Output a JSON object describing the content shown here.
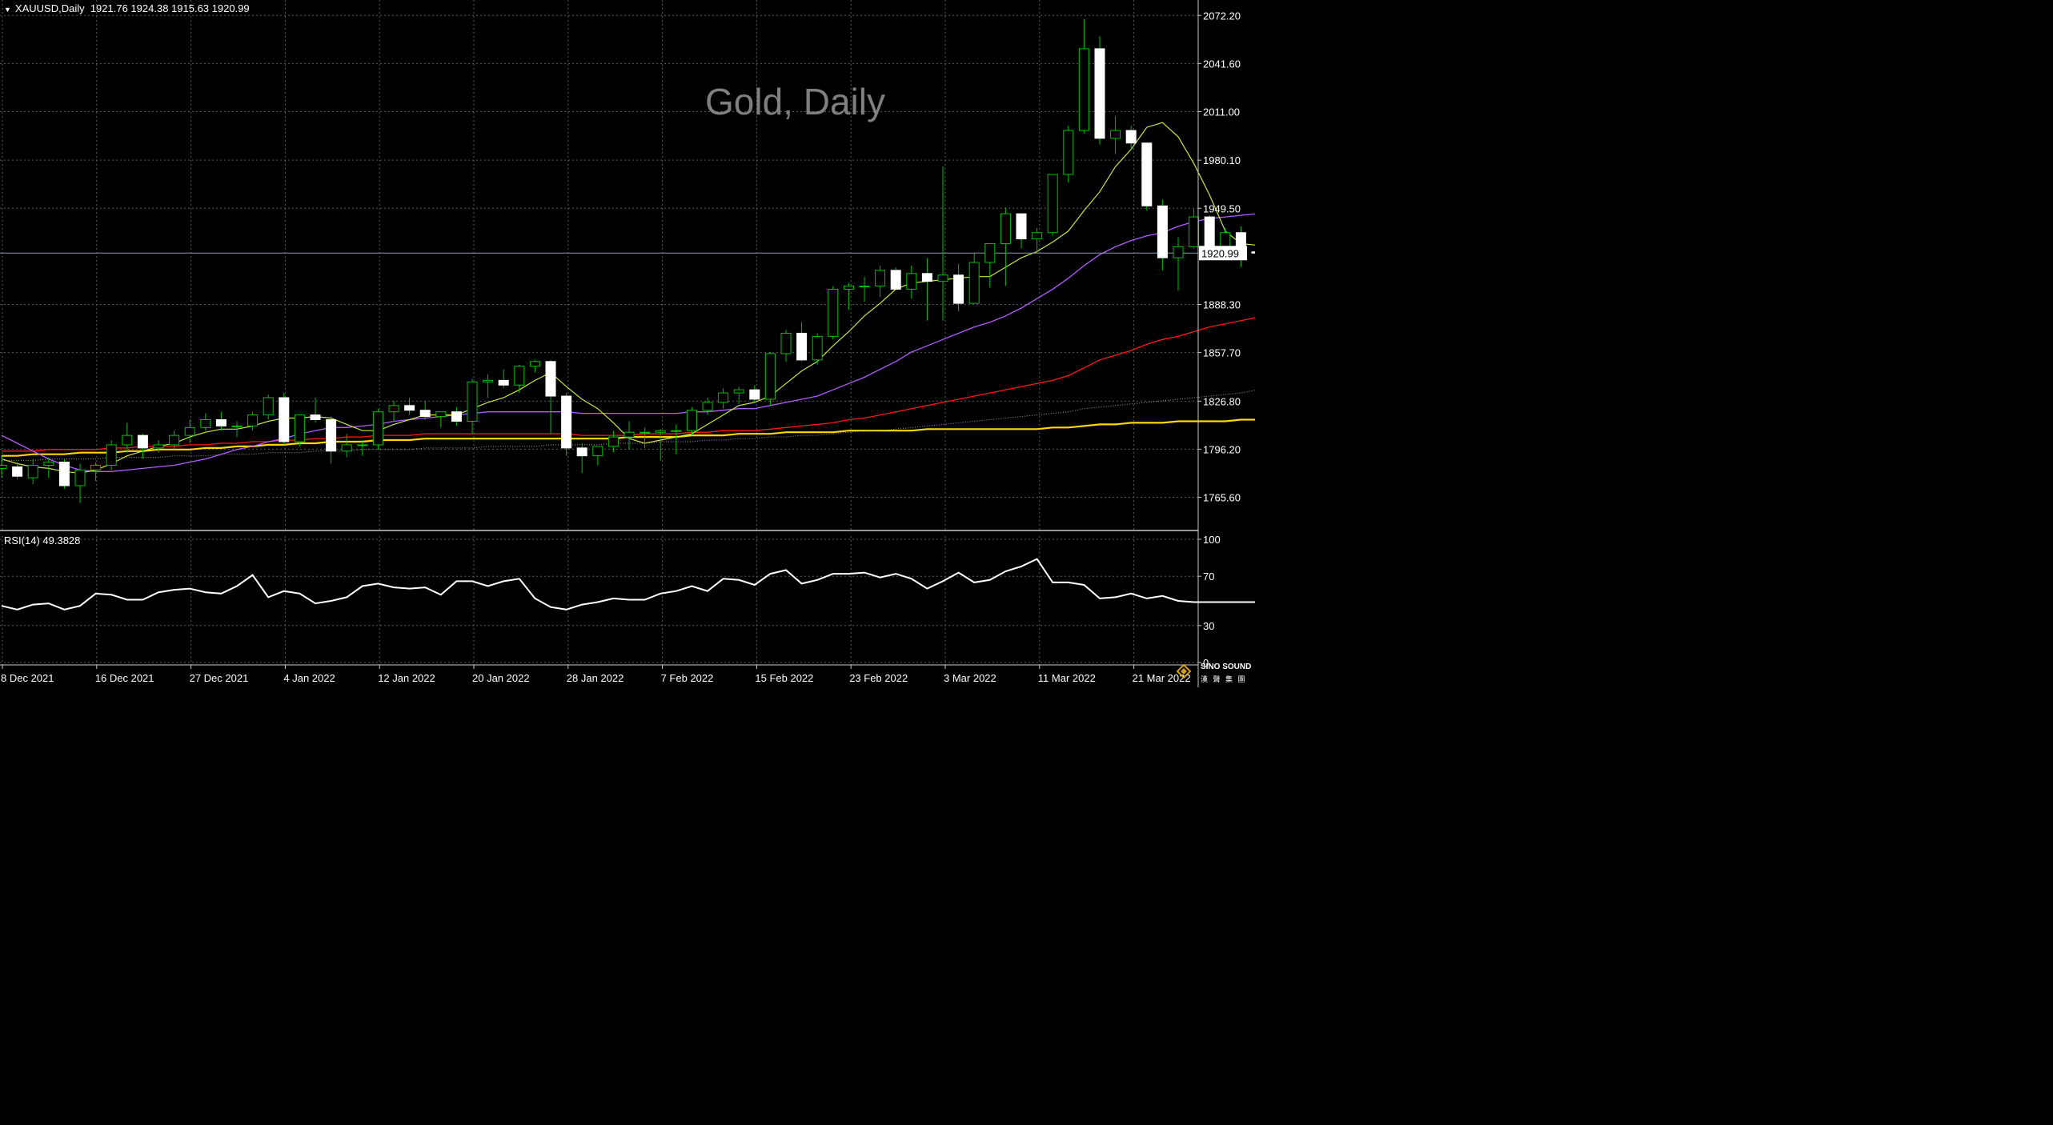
{
  "header": {
    "symbol_line": "XAUUSD,Daily  1921.76 1924.38 1915.63 1920.99"
  },
  "watermark": "Gold, Daily",
  "logo": {
    "line1": "SINO SOUND",
    "line2": "漢 聲 集 團"
  },
  "colors": {
    "background": "#000000",
    "grid": "#5a5a5a",
    "bull_candle": "#000000",
    "bear_candle": "#ffffff",
    "wick": "#00c000",
    "ma5": "#c8e642",
    "ma20": "#b35cff",
    "ma60": "#ff1a1a",
    "ma120": "#a0a0a0",
    "ma240": "#ffd700",
    "rsi": "#ffffff"
  },
  "chart_data": [
    {
      "type": "candlestick",
      "title": "XAUUSD,Daily",
      "last_price": "1920.99",
      "y_ticks": [
        "2072.20",
        "2041.60",
        "2011.00",
        "1980.10",
        "1949.50",
        "1920.99",
        "1888.30",
        "1857.70",
        "1826.80",
        "1796.20",
        "1765.60"
      ],
      "ylim": [
        1745,
        2082
      ],
      "x_labels": [
        "8 Dec 2021",
        "16 Dec 2021",
        "27 Dec 2021",
        "4 Jan 2022",
        "12 Jan 2022",
        "20 Jan 2022",
        "28 Jan 2022",
        "7 Feb 2022",
        "15 Feb 2022",
        "23 Feb 2022",
        "3 Mar 2022",
        "11 Mar 2022",
        "21 Mar 2022"
      ],
      "candles": [
        {
          "o": 1784,
          "h": 1792,
          "l": 1778,
          "c": 1786
        },
        {
          "o": 1785,
          "h": 1788,
          "l": 1777,
          "c": 1779
        },
        {
          "o": 1778,
          "h": 1790,
          "l": 1774,
          "c": 1786
        },
        {
          "o": 1786,
          "h": 1791,
          "l": 1778,
          "c": 1788
        },
        {
          "o": 1788,
          "h": 1790,
          "l": 1771,
          "c": 1773
        },
        {
          "o": 1773,
          "h": 1787,
          "l": 1762,
          "c": 1783
        },
        {
          "o": 1783,
          "h": 1788,
          "l": 1776,
          "c": 1786
        },
        {
          "o": 1786,
          "h": 1802,
          "l": 1783,
          "c": 1799
        },
        {
          "o": 1799,
          "h": 1813,
          "l": 1794,
          "c": 1805
        },
        {
          "o": 1805,
          "h": 1806,
          "l": 1790,
          "c": 1797
        },
        {
          "o": 1797,
          "h": 1802,
          "l": 1794,
          "c": 1799
        },
        {
          "o": 1799,
          "h": 1808,
          "l": 1796,
          "c": 1805
        },
        {
          "o": 1805,
          "h": 1815,
          "l": 1800,
          "c": 1810
        },
        {
          "o": 1810,
          "h": 1819,
          "l": 1808,
          "c": 1815
        },
        {
          "o": 1815,
          "h": 1820,
          "l": 1808,
          "c": 1811
        },
        {
          "o": 1811,
          "h": 1814,
          "l": 1804,
          "c": 1811
        },
        {
          "o": 1811,
          "h": 1820,
          "l": 1808,
          "c": 1818
        },
        {
          "o": 1818,
          "h": 1831,
          "l": 1815,
          "c": 1829
        },
        {
          "o": 1829,
          "h": 1832,
          "l": 1799,
          "c": 1801
        },
        {
          "o": 1801,
          "h": 1818,
          "l": 1798,
          "c": 1818
        },
        {
          "o": 1818,
          "h": 1829,
          "l": 1813,
          "c": 1815
        },
        {
          "o": 1815,
          "h": 1817,
          "l": 1787,
          "c": 1795
        },
        {
          "o": 1795,
          "h": 1806,
          "l": 1791,
          "c": 1799
        },
        {
          "o": 1799,
          "h": 1802,
          "l": 1792,
          "c": 1799
        },
        {
          "o": 1799,
          "h": 1822,
          "l": 1796,
          "c": 1820
        },
        {
          "o": 1820,
          "h": 1827,
          "l": 1814,
          "c": 1824
        },
        {
          "o": 1824,
          "h": 1829,
          "l": 1818,
          "c": 1821
        },
        {
          "o": 1821,
          "h": 1827,
          "l": 1815,
          "c": 1817
        },
        {
          "o": 1817,
          "h": 1820,
          "l": 1810,
          "c": 1820
        },
        {
          "o": 1820,
          "h": 1823,
          "l": 1811,
          "c": 1814
        },
        {
          "o": 1814,
          "h": 1841,
          "l": 1806,
          "c": 1839
        },
        {
          "o": 1839,
          "h": 1844,
          "l": 1829,
          "c": 1840
        },
        {
          "o": 1840,
          "h": 1847,
          "l": 1835,
          "c": 1837
        },
        {
          "o": 1837,
          "h": 1850,
          "l": 1832,
          "c": 1849
        },
        {
          "o": 1849,
          "h": 1853,
          "l": 1845,
          "c": 1852
        },
        {
          "o": 1852,
          "h": 1853,
          "l": 1806,
          "c": 1830
        },
        {
          "o": 1830,
          "h": 1832,
          "l": 1792,
          "c": 1797
        },
        {
          "o": 1797,
          "h": 1800,
          "l": 1781,
          "c": 1792
        },
        {
          "o": 1792,
          "h": 1798,
          "l": 1786,
          "c": 1798
        },
        {
          "o": 1798,
          "h": 1808,
          "l": 1794,
          "c": 1804
        },
        {
          "o": 1804,
          "h": 1814,
          "l": 1796,
          "c": 1807
        },
        {
          "o": 1807,
          "h": 1810,
          "l": 1797,
          "c": 1807
        },
        {
          "o": 1807,
          "h": 1809,
          "l": 1789,
          "c": 1808
        },
        {
          "o": 1808,
          "h": 1812,
          "l": 1793,
          "c": 1808
        },
        {
          "o": 1808,
          "h": 1823,
          "l": 1805,
          "c": 1821
        },
        {
          "o": 1821,
          "h": 1829,
          "l": 1818,
          "c": 1826
        },
        {
          "o": 1826,
          "h": 1835,
          "l": 1822,
          "c": 1832
        },
        {
          "o": 1832,
          "h": 1836,
          "l": 1825,
          "c": 1834
        },
        {
          "o": 1834,
          "h": 1837,
          "l": 1826,
          "c": 1828
        },
        {
          "o": 1828,
          "h": 1858,
          "l": 1824,
          "c": 1857
        },
        {
          "o": 1857,
          "h": 1872,
          "l": 1852,
          "c": 1870
        },
        {
          "o": 1870,
          "h": 1877,
          "l": 1852,
          "c": 1853
        },
        {
          "o": 1853,
          "h": 1870,
          "l": 1850,
          "c": 1868
        },
        {
          "o": 1868,
          "h": 1900,
          "l": 1866,
          "c": 1898
        },
        {
          "o": 1898,
          "h": 1902,
          "l": 1885,
          "c": 1900
        },
        {
          "o": 1900,
          "h": 1906,
          "l": 1890,
          "c": 1900
        },
        {
          "o": 1900,
          "h": 1913,
          "l": 1893,
          "c": 1910
        },
        {
          "o": 1910,
          "h": 1912,
          "l": 1898,
          "c": 1898
        },
        {
          "o": 1898,
          "h": 1913,
          "l": 1892,
          "c": 1908
        },
        {
          "o": 1908,
          "h": 1918,
          "l": 1878,
          "c": 1903
        },
        {
          "o": 1903,
          "h": 1976,
          "l": 1878,
          "c": 1907
        },
        {
          "o": 1907,
          "h": 1914,
          "l": 1884,
          "c": 1889
        },
        {
          "o": 1889,
          "h": 1921,
          "l": 1892,
          "c": 1915
        },
        {
          "o": 1915,
          "h": 1927,
          "l": 1899,
          "c": 1927
        },
        {
          "o": 1927,
          "h": 1950,
          "l": 1900,
          "c": 1946
        },
        {
          "o": 1946,
          "h": 1946,
          "l": 1924,
          "c": 1930
        },
        {
          "o": 1930,
          "h": 1937,
          "l": 1921,
          "c": 1934
        },
        {
          "o": 1934,
          "h": 1971,
          "l": 1932,
          "c": 1971
        },
        {
          "o": 1971,
          "h": 2002,
          "l": 1966,
          "c": 1999
        },
        {
          "o": 1999,
          "h": 2070,
          "l": 1997,
          "c": 2051
        },
        {
          "o": 2051,
          "h": 2059,
          "l": 1990,
          "c": 1994
        },
        {
          "o": 1994,
          "h": 2008,
          "l": 1984,
          "c": 1999
        },
        {
          "o": 1999,
          "h": 2002,
          "l": 1987,
          "c": 1991
        },
        {
          "o": 1991,
          "h": 1991,
          "l": 1948,
          "c": 1951
        },
        {
          "o": 1951,
          "h": 1955,
          "l": 1910,
          "c": 1918
        },
        {
          "o": 1918,
          "h": 1931,
          "l": 1897,
          "c": 1925
        },
        {
          "o": 1925,
          "h": 1949,
          "l": 1924,
          "c": 1944
        },
        {
          "o": 1944,
          "h": 1945,
          "l": 1918,
          "c": 1921
        },
        {
          "o": 1921,
          "h": 1937,
          "l": 1918,
          "c": 1934
        },
        {
          "o": 1934,
          "h": 1938,
          "l": 1912,
          "c": 1921
        },
        {
          "o": 1921.76,
          "h": 1924.38,
          "l": 1915.63,
          "c": 1920.99
        }
      ],
      "ma5": [
        1790,
        1787,
        1785,
        1784,
        1782,
        1781,
        1783,
        1787,
        1792,
        1795,
        1798,
        1800,
        1804,
        1807,
        1809,
        1809,
        1811,
        1814,
        1816,
        1816,
        1817,
        1816,
        1812,
        1808,
        1808,
        1812,
        1815,
        1818,
        1818,
        1818,
        1822,
        1826,
        1829,
        1834,
        1840,
        1845,
        1836,
        1828,
        1822,
        1813,
        1803,
        1800,
        1802,
        1804,
        1806,
        1812,
        1818,
        1824,
        1826,
        1830,
        1838,
        1846,
        1852,
        1862,
        1871,
        1881,
        1889,
        1898,
        1902,
        1903,
        1904,
        1905,
        1906,
        1906,
        1912,
        1918,
        1922,
        1928,
        1935,
        1948,
        1960,
        1976,
        1987,
        2001,
        2004,
        1995,
        1978,
        1958,
        1935,
        1927,
        1926
      ],
      "ma20": [
        1805,
        1800,
        1795,
        1790,
        1786,
        1783,
        1782,
        1782,
        1783,
        1784,
        1785,
        1786,
        1788,
        1790,
        1793,
        1796,
        1798,
        1801,
        1803,
        1806,
        1808,
        1810,
        1810,
        1811,
        1812,
        1814,
        1815,
        1816,
        1817,
        1818,
        1819,
        1820,
        1820,
        1820,
        1820,
        1820,
        1820,
        1819,
        1819,
        1819,
        1819,
        1819,
        1819,
        1819,
        1820,
        1820,
        1821,
        1822,
        1822,
        1824,
        1826,
        1828,
        1830,
        1834,
        1838,
        1842,
        1847,
        1852,
        1858,
        1862,
        1866,
        1870,
        1874,
        1877,
        1881,
        1886,
        1892,
        1898,
        1905,
        1913,
        1920,
        1925,
        1929,
        1932,
        1934,
        1938,
        1941,
        1943,
        1944,
        1945,
        1946
      ],
      "ma60": [
        1795,
        1795,
        1795,
        1796,
        1796,
        1796,
        1796,
        1797,
        1797,
        1798,
        1798,
        1798,
        1799,
        1799,
        1800,
        1800,
        1801,
        1801,
        1802,
        1802,
        1803,
        1803,
        1804,
        1804,
        1805,
        1805,
        1805,
        1806,
        1806,
        1806,
        1806,
        1806,
        1806,
        1806,
        1806,
        1806,
        1806,
        1805,
        1805,
        1805,
        1805,
        1806,
        1806,
        1806,
        1807,
        1807,
        1808,
        1808,
        1808,
        1809,
        1810,
        1811,
        1812,
        1813,
        1815,
        1816,
        1818,
        1820,
        1822,
        1824,
        1826,
        1828,
        1830,
        1832,
        1834,
        1836,
        1838,
        1840,
        1843,
        1848,
        1853,
        1856,
        1859,
        1863,
        1866,
        1868,
        1871,
        1874,
        1876,
        1878,
        1880
      ],
      "ma120": [
        1789,
        1789,
        1789,
        1790,
        1790,
        1790,
        1790,
        1791,
        1791,
        1791,
        1791,
        1792,
        1792,
        1792,
        1793,
        1793,
        1793,
        1794,
        1794,
        1794,
        1795,
        1795,
        1795,
        1796,
        1796,
        1796,
        1796,
        1797,
        1797,
        1797,
        1797,
        1798,
        1798,
        1798,
        1798,
        1799,
        1799,
        1799,
        1799,
        1800,
        1800,
        1800,
        1801,
        1801,
        1801,
        1802,
        1802,
        1803,
        1803,
        1804,
        1804,
        1805,
        1805,
        1806,
        1807,
        1808,
        1808,
        1809,
        1810,
        1811,
        1812,
        1813,
        1814,
        1815,
        1816,
        1817,
        1818,
        1819,
        1820,
        1822,
        1823,
        1824,
        1825,
        1826,
        1827,
        1828,
        1829,
        1830,
        1831,
        1832,
        1834
      ],
      "ma240": [
        1792,
        1792,
        1793,
        1793,
        1793,
        1794,
        1794,
        1794,
        1795,
        1795,
        1796,
        1796,
        1796,
        1797,
        1797,
        1798,
        1798,
        1799,
        1799,
        1800,
        1800,
        1801,
        1801,
        1801,
        1802,
        1802,
        1802,
        1803,
        1803,
        1803,
        1803,
        1803,
        1803,
        1803,
        1803,
        1803,
        1803,
        1803,
        1803,
        1803,
        1804,
        1804,
        1804,
        1804,
        1805,
        1805,
        1805,
        1806,
        1806,
        1806,
        1807,
        1807,
        1807,
        1807,
        1808,
        1808,
        1808,
        1808,
        1808,
        1809,
        1809,
        1809,
        1809,
        1809,
        1809,
        1809,
        1809,
        1810,
        1810,
        1811,
        1812,
        1812,
        1813,
        1813,
        1813,
        1814,
        1814,
        1814,
        1814,
        1815,
        1815
      ]
    },
    {
      "type": "line",
      "title": "RSI(14) 49.3828",
      "y_ticks": [
        "100",
        "70",
        "30",
        "0"
      ],
      "ylim": [
        0,
        100
      ],
      "series": [
        {
          "name": "RSI(14)",
          "values": [
            46,
            43,
            47,
            48,
            43,
            46,
            56,
            55,
            51,
            51,
            57,
            59,
            60,
            57,
            56,
            62,
            71,
            53,
            58,
            56,
            48,
            50,
            53,
            62,
            64,
            61,
            60,
            61,
            55,
            66,
            66,
            62,
            66,
            68,
            52,
            45,
            43,
            47,
            49,
            52,
            51,
            51,
            56,
            58,
            62,
            58,
            68,
            67,
            63,
            72,
            75,
            64,
            67,
            72,
            72,
            73,
            69,
            72,
            68,
            60,
            66,
            73,
            65,
            67,
            74,
            78,
            84,
            65,
            65,
            63,
            52,
            53,
            56,
            52,
            54,
            50,
            49,
            49,
            49,
            49,
            49
          ]
        }
      ]
    }
  ]
}
